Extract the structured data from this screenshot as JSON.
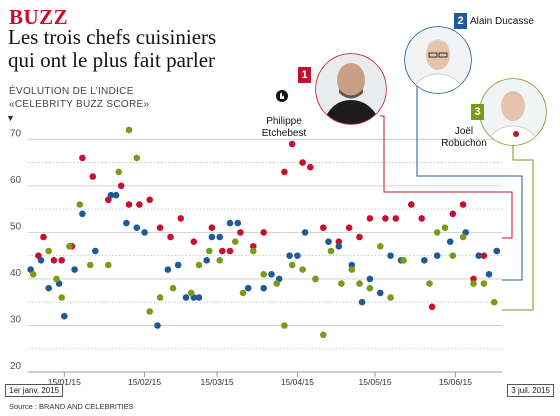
{
  "header": {
    "kicker": "BUZZ",
    "title_line1": "Les trois chefs cuisiniers",
    "title_line2": "qui ont le plus fait parler",
    "subtitle_line1": "Évolution de l’indice",
    "subtitle_line2": "«Celebrity buzz score»"
  },
  "footer": {
    "source": "Source : BRAND AND CELEBRITIES",
    "start_date": "1er janv. 2015",
    "end_date": "3 juil. 2015"
  },
  "chefs": [
    {
      "rank": "1",
      "name_line1": "Philippe",
      "name_line2": "Etchebest",
      "color": "#c8102e"
    },
    {
      "rank": "2",
      "name_line1": "Alain Ducasse",
      "name_line2": "",
      "color": "#1f5a96"
    },
    {
      "rank": "3",
      "name_line1": "Joël",
      "name_line2": "Robuchon",
      "color": "#7a9a1a"
    }
  ],
  "chart_data": {
    "type": "scatter",
    "x_scale": "date",
    "xlim": [
      "2015-01-01",
      "2015-07-03"
    ],
    "ylim": [
      20,
      72
    ],
    "y_ticks": [
      20,
      30,
      40,
      50,
      60,
      70
    ],
    "x_ticks": [
      "15/01/15",
      "15/02/15",
      "15/03/15",
      "15/04/15",
      "15/05/15",
      "15/06/15"
    ],
    "x_tick_dates": [
      "2015-01-15",
      "2015-02-15",
      "2015-03-15",
      "2015-04-15",
      "2015-05-15",
      "2015-06-15"
    ],
    "grid": "horizontal-dotted",
    "series": [
      {
        "name": "Philippe Etchebest",
        "color": "#c8102e",
        "points": [
          [
            "2015-01-05",
            45
          ],
          [
            "2015-01-07",
            49
          ],
          [
            "2015-01-11",
            44
          ],
          [
            "2015-01-14",
            44
          ],
          [
            "2015-01-18",
            47
          ],
          [
            "2015-01-22",
            66
          ],
          [
            "2015-01-26",
            62
          ],
          [
            "2015-02-01",
            57
          ],
          [
            "2015-02-06",
            60
          ],
          [
            "2015-02-09",
            56
          ],
          [
            "2015-02-13",
            56
          ],
          [
            "2015-02-17",
            57
          ],
          [
            "2015-02-21",
            51
          ],
          [
            "2015-02-25",
            49
          ],
          [
            "2015-03-01",
            53
          ],
          [
            "2015-03-06",
            48
          ],
          [
            "2015-03-13",
            51
          ],
          [
            "2015-03-17",
            46
          ],
          [
            "2015-03-20",
            46
          ],
          [
            "2015-03-24",
            50
          ],
          [
            "2015-03-29",
            47
          ],
          [
            "2015-04-02",
            50
          ],
          [
            "2015-04-10",
            63
          ],
          [
            "2015-04-13",
            69
          ],
          [
            "2015-04-17",
            65
          ],
          [
            "2015-04-20",
            64
          ],
          [
            "2015-04-25",
            51
          ],
          [
            "2015-05-01",
            48
          ],
          [
            "2015-05-05",
            51
          ],
          [
            "2015-05-09",
            49
          ],
          [
            "2015-05-13",
            53
          ],
          [
            "2015-05-19",
            53
          ],
          [
            "2015-05-23",
            53
          ],
          [
            "2015-05-29",
            56
          ],
          [
            "2015-06-02",
            53
          ],
          [
            "2015-06-06",
            34
          ],
          [
            "2015-06-14",
            54
          ],
          [
            "2015-06-18",
            56
          ],
          [
            "2015-06-22",
            40
          ],
          [
            "2015-06-26",
            45
          ],
          [
            "2015-07-01",
            46
          ]
        ]
      },
      {
        "name": "Alain Ducasse",
        "color": "#1f5a96",
        "points": [
          [
            "2015-01-02",
            42
          ],
          [
            "2015-01-06",
            44
          ],
          [
            "2015-01-09",
            38
          ],
          [
            "2015-01-13",
            39
          ],
          [
            "2015-01-15",
            32
          ],
          [
            "2015-01-19",
            42
          ],
          [
            "2015-01-22",
            54
          ],
          [
            "2015-01-27",
            46
          ],
          [
            "2015-02-02",
            58
          ],
          [
            "2015-02-04",
            58
          ],
          [
            "2015-02-08",
            52
          ],
          [
            "2015-02-12",
            51
          ],
          [
            "2015-02-15",
            50
          ],
          [
            "2015-02-20",
            30
          ],
          [
            "2015-02-24",
            42
          ],
          [
            "2015-02-28",
            43
          ],
          [
            "2015-03-03",
            36
          ],
          [
            "2015-03-06",
            36
          ],
          [
            "2015-03-08",
            36
          ],
          [
            "2015-03-11",
            44
          ],
          [
            "2015-03-13",
            49
          ],
          [
            "2015-03-16",
            49
          ],
          [
            "2015-03-20",
            52
          ],
          [
            "2015-03-23",
            52
          ],
          [
            "2015-03-27",
            38
          ],
          [
            "2015-04-02",
            38
          ],
          [
            "2015-04-05",
            41
          ],
          [
            "2015-04-08",
            40
          ],
          [
            "2015-04-12",
            45
          ],
          [
            "2015-04-15",
            45
          ],
          [
            "2015-04-18",
            50
          ],
          [
            "2015-04-22",
            40
          ],
          [
            "2015-04-27",
            48
          ],
          [
            "2015-05-01",
            47
          ],
          [
            "2015-05-06",
            43
          ],
          [
            "2015-05-10",
            35
          ],
          [
            "2015-05-13",
            40
          ],
          [
            "2015-05-17",
            37
          ],
          [
            "2015-05-21",
            45
          ],
          [
            "2015-05-25",
            44
          ],
          [
            "2015-06-03",
            44
          ],
          [
            "2015-06-08",
            45
          ],
          [
            "2015-06-13",
            48
          ],
          [
            "2015-06-19",
            50
          ],
          [
            "2015-06-24",
            45
          ],
          [
            "2015-06-28",
            41
          ],
          [
            "2015-07-01",
            46
          ]
        ]
      },
      {
        "name": "Joël Robuchon",
        "color": "#7a9a1a",
        "points": [
          [
            "2015-01-03",
            41
          ],
          [
            "2015-01-09",
            46
          ],
          [
            "2015-01-12",
            40
          ],
          [
            "2015-01-14",
            36
          ],
          [
            "2015-01-17",
            47
          ],
          [
            "2015-01-21",
            56
          ],
          [
            "2015-01-25",
            43
          ],
          [
            "2015-02-01",
            43
          ],
          [
            "2015-02-05",
            63
          ],
          [
            "2015-02-09",
            72
          ],
          [
            "2015-02-12",
            66
          ],
          [
            "2015-02-17",
            33
          ],
          [
            "2015-02-21",
            36
          ],
          [
            "2015-02-26",
            38
          ],
          [
            "2015-03-05",
            37
          ],
          [
            "2015-03-08",
            43
          ],
          [
            "2015-03-12",
            46
          ],
          [
            "2015-03-16",
            44
          ],
          [
            "2015-03-22",
            48
          ],
          [
            "2015-03-25",
            37
          ],
          [
            "2015-03-29",
            46
          ],
          [
            "2015-04-02",
            41
          ],
          [
            "2015-04-07",
            39
          ],
          [
            "2015-04-10",
            30
          ],
          [
            "2015-04-13",
            43
          ],
          [
            "2015-04-17",
            42
          ],
          [
            "2015-04-22",
            40
          ],
          [
            "2015-04-25",
            28
          ],
          [
            "2015-04-28",
            46
          ],
          [
            "2015-05-02",
            39
          ],
          [
            "2015-05-06",
            42
          ],
          [
            "2015-05-09",
            39
          ],
          [
            "2015-05-13",
            38
          ],
          [
            "2015-05-17",
            47
          ],
          [
            "2015-05-21",
            36
          ],
          [
            "2015-05-26",
            44
          ],
          [
            "2015-06-05",
            39
          ],
          [
            "2015-06-08",
            50
          ],
          [
            "2015-06-11",
            51
          ],
          [
            "2015-06-14",
            45
          ],
          [
            "2015-06-18",
            49
          ],
          [
            "2015-06-22",
            39
          ],
          [
            "2015-06-26",
            39
          ],
          [
            "2015-06-30",
            35
          ]
        ]
      }
    ]
  }
}
